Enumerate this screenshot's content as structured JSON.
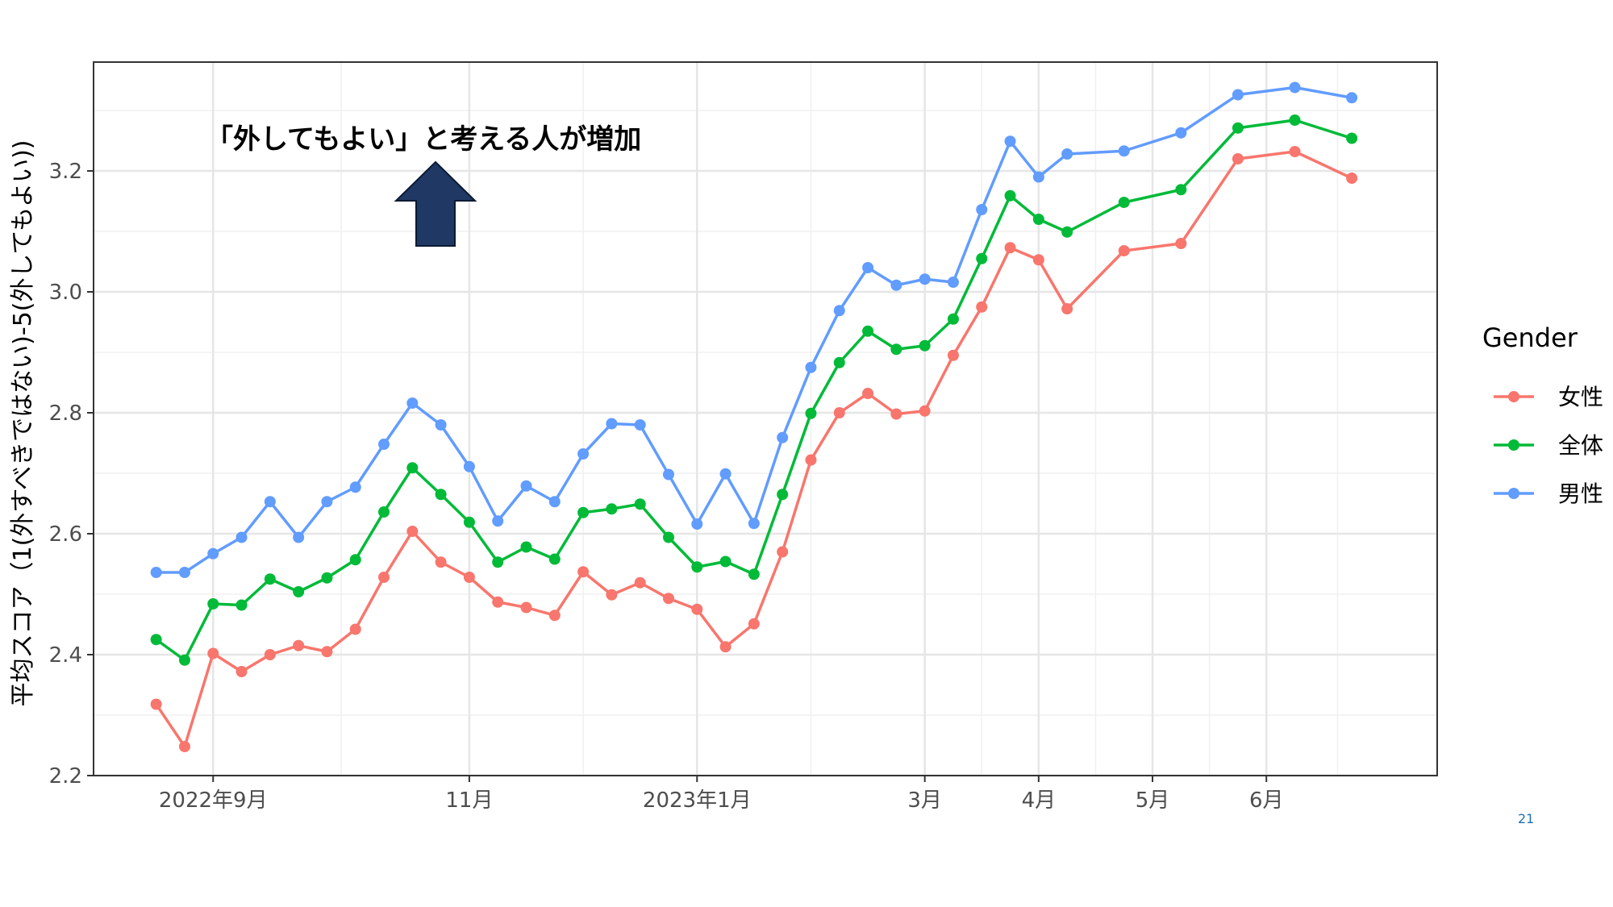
{
  "page_number": "21",
  "annotation": {
    "text": "「外してもよい」と考える人が増加",
    "arrow_color": "#1f3864",
    "arrow_icon": "up-arrow-icon"
  },
  "chart_data": {
    "type": "line",
    "ylabel": "平均スコア（1(外すべきではない)-5(外してもよい))",
    "xlabel": "",
    "ylim": [
      2.2,
      3.38
    ],
    "y_ticks": [
      2.2,
      2.4,
      2.6,
      2.8,
      3.0,
      3.2
    ],
    "y_tick_labels": [
      "2.2",
      "2.4",
      "2.6",
      "2.8",
      "3.0",
      "3.2"
    ],
    "x_ticks": [
      {
        "label": "2022年9月",
        "x": 3.0
      },
      {
        "label": "11月",
        "x": 12.0
      },
      {
        "label": "2023年1月",
        "x": 20.0
      },
      {
        "label": "3月",
        "x": 28.0
      },
      {
        "label": "4月",
        "x": 32.0
      },
      {
        "label": "5月",
        "x": 36.0
      },
      {
        "label": "6月",
        "x": 40.0
      }
    ],
    "x_minor_ticks": [
      7.5,
      16.0,
      24.0,
      30.0,
      34.0,
      38.0,
      42.5
    ],
    "xlim": [
      -1.2,
      46.0
    ],
    "grid": true,
    "legend_title": "Gender",
    "legend_position": "right",
    "x": [
      1,
      2,
      3,
      4,
      5,
      6,
      7,
      8,
      9,
      10,
      11,
      12,
      13,
      14,
      15,
      16,
      17,
      18,
      19,
      20,
      21,
      22,
      23,
      24,
      25,
      26,
      27,
      28,
      29,
      30,
      31,
      32,
      33,
      35,
      37,
      39,
      41,
      43
    ],
    "series": [
      {
        "name": "女性",
        "color": "#f8766d",
        "values": [
          2.318,
          2.248,
          2.402,
          2.372,
          2.4,
          2.415,
          2.405,
          2.442,
          2.528,
          2.604,
          2.553,
          2.528,
          2.487,
          2.478,
          2.465,
          2.537,
          2.499,
          2.519,
          2.493,
          2.475,
          2.413,
          2.451,
          2.57,
          2.722,
          2.8,
          2.832,
          2.798,
          2.803,
          2.895,
          2.975,
          3.073,
          3.053,
          2.972,
          3.068,
          3.08,
          3.22,
          3.232,
          3.188
        ]
      },
      {
        "name": "全体",
        "color": "#00ba38",
        "values": [
          2.425,
          2.391,
          2.484,
          2.482,
          2.525,
          2.504,
          2.527,
          2.557,
          2.636,
          2.709,
          2.665,
          2.619,
          2.553,
          2.578,
          2.558,
          2.635,
          2.641,
          2.649,
          2.594,
          2.545,
          2.554,
          2.533,
          2.665,
          2.799,
          2.883,
          2.935,
          2.905,
          2.911,
          2.955,
          3.055,
          3.159,
          3.12,
          3.099,
          3.148,
          3.169,
          3.271,
          3.284,
          3.254
        ]
      },
      {
        "name": "男性",
        "color": "#619cff",
        "values": [
          2.536,
          2.536,
          2.567,
          2.594,
          2.653,
          2.594,
          2.653,
          2.677,
          2.748,
          2.816,
          2.78,
          2.711,
          2.621,
          2.679,
          2.653,
          2.732,
          2.782,
          2.78,
          2.698,
          2.616,
          2.699,
          2.617,
          2.759,
          2.875,
          2.969,
          3.04,
          3.011,
          3.021,
          3.016,
          3.136,
          3.249,
          3.19,
          3.228,
          3.233,
          3.263,
          3.326,
          3.338,
          3.321
        ]
      }
    ]
  }
}
